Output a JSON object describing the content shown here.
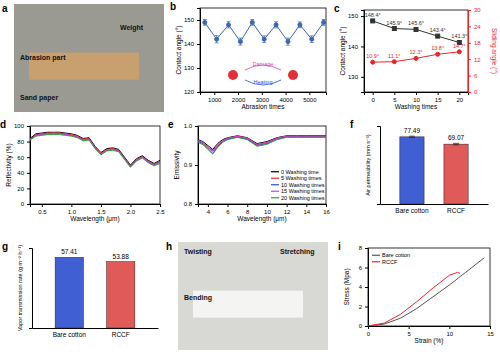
{
  "chart_data": [
    {
      "type": "line",
      "title": "b",
      "x_label": "Abrasion times",
      "y_label": "Contact angle (°)",
      "x": [
        600,
        1100,
        1600,
        2100,
        2600,
        3100,
        3600,
        4100,
        4600,
        5100,
        5600
      ],
      "values": [
        149,
        142,
        148,
        141,
        149,
        142,
        148,
        141,
        148,
        142,
        149
      ],
      "errors": [
        1.2,
        1.5,
        1.3,
        1.5,
        1.2,
        1.4,
        1.3,
        1.5,
        1.2,
        1.4,
        1.2
      ],
      "color": "#3a67b0",
      "marker": "circle",
      "xlim": [
        400,
        5700
      ],
      "xticks": [
        1000,
        2000,
        3000,
        4000,
        5000
      ],
      "ylim": [
        120,
        155
      ],
      "yticks": [
        120,
        130,
        140,
        150
      ],
      "annotations": [
        "Damage",
        "Heating"
      ]
    },
    {
      "type": "line",
      "title": "c",
      "x_label": "Washing times",
      "y_label": "Contact angle (°)",
      "y2_label": "Sliding angle (°)",
      "x": [
        0,
        5,
        10,
        15,
        20
      ],
      "series": [
        {
          "name": "Contact angle",
          "color": "#333333",
          "marker": "square",
          "values": [
            148.4,
            145.9,
            145.6,
            143.4,
            141.3
          ],
          "value_labels": [
            "148.4°",
            "145.9°",
            "145.6°",
            "143.4°",
            "141.3°"
          ]
        },
        {
          "name": "Sliding angle",
          "color": "#e8262a",
          "marker": "circle",
          "axis": "y2",
          "values": [
            10.9,
            11.1,
            12.3,
            13.8,
            14.7
          ],
          "value_labels": [
            "10.9°",
            "11.1°",
            "12.3°",
            "13.8°",
            "14.7°"
          ]
        }
      ],
      "data_labels": true,
      "xlim": [
        -2,
        22
      ],
      "xticks": [
        0,
        5,
        10,
        15,
        20
      ],
      "ylim": [
        125,
        152
      ],
      "yticks": [
        130,
        140,
        150
      ],
      "y2lim": [
        0,
        30
      ],
      "y2ticks": [
        0,
        6,
        12,
        18,
        24,
        30
      ]
    },
    {
      "type": "line",
      "title": "d",
      "x_label": "Wavelength (μm)",
      "y_label": "Reflectivity (%)",
      "x": [
        0.3,
        0.4,
        0.5,
        0.6,
        0.7,
        0.8,
        0.9,
        1.0,
        1.1,
        1.2,
        1.3,
        1.4,
        1.5,
        1.6,
        1.7,
        1.8,
        1.9,
        2.0,
        2.1,
        2.2,
        2.3,
        2.4,
        2.5
      ],
      "series": [
        {
          "color": "#000000",
          "values": [
            84,
            90,
            91,
            92,
            92,
            92,
            91,
            90,
            88,
            84,
            85,
            74,
            66,
            71,
            72,
            70,
            60,
            50,
            58,
            62,
            56,
            52,
            56
          ]
        },
        {
          "color": "#e8262a",
          "values": [
            83,
            89,
            90,
            91,
            91,
            91,
            90,
            89,
            87,
            83,
            84,
            73,
            65,
            70,
            71,
            69,
            59,
            49,
            57,
            61,
            55,
            51,
            55
          ]
        },
        {
          "color": "#2b4fd8",
          "values": [
            83,
            88,
            89,
            90,
            90,
            90,
            89,
            88,
            86,
            82,
            83,
            72,
            64,
            69,
            70,
            68,
            58,
            48,
            56,
            60,
            54,
            50,
            54
          ]
        },
        {
          "color": "#d63fd0",
          "values": [
            82,
            88,
            89,
            90,
            91,
            90,
            89,
            88,
            86,
            82,
            83,
            72,
            64,
            69,
            70,
            68,
            58,
            48,
            56,
            60,
            54,
            50,
            53
          ]
        },
        {
          "color": "#2e9e3a",
          "values": [
            82,
            87,
            88,
            89,
            89,
            89,
            88,
            87,
            85,
            81,
            82,
            71,
            63,
            68,
            69,
            67,
            57,
            47,
            55,
            59,
            53,
            49,
            52
          ]
        }
      ],
      "xlim": [
        0.3,
        2.5
      ],
      "xticks": [
        0.5,
        {
          "value": 1,
          "label": "1.0"
        },
        1.5,
        {
          "value": 2,
          "label": "2.0"
        },
        2.5
      ],
      "ylim": [
        0,
        100
      ],
      "yticks": [
        0,
        20,
        40,
        60,
        80,
        100
      ]
    },
    {
      "type": "line",
      "title": "e",
      "x_label": "Wavelength (μm)",
      "y_label": "Emissivity",
      "x": [
        3,
        3.5,
        4,
        4.5,
        5,
        5.5,
        6,
        7,
        8,
        9,
        10,
        11,
        12,
        13,
        14,
        15,
        16
      ],
      "series": [
        {
          "name": "0 Washing time",
          "color": "#000000",
          "values": [
            0.965,
            0.96,
            0.95,
            0.94,
            0.955,
            0.965,
            0.97,
            0.975,
            0.97,
            0.955,
            0.96,
            0.97,
            0.975,
            0.975,
            0.975,
            0.975,
            0.975
          ]
        },
        {
          "name": "5 Washing times",
          "color": "#e8262a",
          "values": [
            0.962,
            0.957,
            0.945,
            0.935,
            0.95,
            0.962,
            0.968,
            0.973,
            0.968,
            0.952,
            0.957,
            0.968,
            0.973,
            0.973,
            0.973,
            0.973,
            0.973
          ]
        },
        {
          "name": "10 Washing times",
          "color": "#2b4fd8",
          "values": [
            0.96,
            0.955,
            0.942,
            0.93,
            0.948,
            0.96,
            0.966,
            0.972,
            0.966,
            0.95,
            0.955,
            0.966,
            0.972,
            0.972,
            0.972,
            0.972,
            0.972
          ]
        },
        {
          "name": "15 Washing times",
          "color": "#d63fd0",
          "values": [
            0.963,
            0.958,
            0.947,
            0.937,
            0.952,
            0.963,
            0.969,
            0.974,
            0.969,
            0.953,
            0.958,
            0.969,
            0.974,
            0.974,
            0.974,
            0.974,
            0.974
          ]
        },
        {
          "name": "20 Washing times",
          "color": "#2e9e3a",
          "values": [
            0.958,
            0.952,
            0.94,
            0.928,
            0.945,
            0.958,
            0.965,
            0.971,
            0.965,
            0.948,
            0.953,
            0.965,
            0.971,
            0.971,
            0.971,
            0.971,
            0.971
          ]
        }
      ],
      "legend": "lower right",
      "xlim": [
        3,
        16
      ],
      "xticks": [
        4,
        6,
        8,
        10,
        12,
        14,
        16
      ],
      "ylim": [
        0.8,
        1
      ],
      "yticks": [
        0.8,
        0.9,
        {
          "value": 1,
          "label": "1.0"
        }
      ]
    },
    {
      "type": "bar",
      "title": "f",
      "y_label": "Air permeability (mm s⁻¹)",
      "categories": [
        "Bare cotton",
        "RCCF"
      ],
      "values": [
        77.49,
        69.07
      ],
      "errors": [
        0.8,
        0.9
      ],
      "colors": [
        "#3f5fd3",
        "#e05a5a"
      ],
      "data_labels": true,
      "tick_labels": "x",
      "ylim": [
        0,
        90
      ]
    },
    {
      "type": "bar",
      "title": "g",
      "y_label": "Vapor transmission rate (g m⁻² h⁻¹)",
      "categories": [
        "Bare cotton",
        "RCCF"
      ],
      "values": [
        57.41,
        53.88
      ],
      "colors": [
        "#3f5fd3",
        "#e05a5a"
      ],
      "data_labels": true,
      "tick_labels": "x",
      "ylim": [
        0,
        65
      ]
    },
    {
      "type": "line",
      "title": "i",
      "x_label": "Strain (%)",
      "y_label": "Stress (Mpa)",
      "series": [
        {
          "name": "Bare cotton",
          "color": "#555555",
          "x": [
            0,
            2,
            4,
            6,
            8,
            10,
            12,
            14.3
          ],
          "values": [
            0,
            0.2,
            0.8,
            1.8,
            3.0,
            4.2,
            5.5,
            7.0
          ]
        },
        {
          "name": "RCCF",
          "color": "#e8262a",
          "x": [
            0,
            2,
            4,
            6,
            8,
            10,
            11,
            11.3
          ],
          "values": [
            0,
            0.3,
            1.2,
            2.5,
            3.9,
            5.2,
            5.5,
            5.4
          ]
        }
      ],
      "legend": "upper left",
      "xlim": [
        0,
        15
      ],
      "xticks": [
        0,
        5,
        10,
        15
      ],
      "ylim": [
        0,
        8
      ],
      "yticks": [
        0,
        2,
        4,
        6,
        8
      ]
    }
  ],
  "photos": [
    {
      "title": "a",
      "labels": [
        "Weight",
        "Abrasion part",
        "Sand paper"
      ]
    },
    {
      "title": "h",
      "labels": [
        "Twisting",
        "Stretching",
        "Bending"
      ]
    }
  ]
}
